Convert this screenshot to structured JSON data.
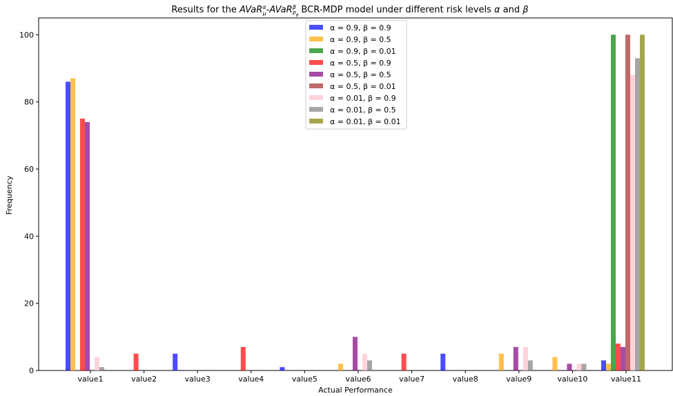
{
  "chart_data": {
    "type": "bar",
    "title": "Results for the AVaR_μ^α-AVaR_{P_θ}^β BCR-MDP model under different risk levels α and β",
    "title_parts": {
      "prefix": "Results for the ",
      "term1": "AVaR",
      "term1_sub": "μ",
      "term1_sup": "α",
      "dash": "-",
      "term2": "AVaR",
      "term2_sub": "P",
      "term2_subsub": "θ",
      "term2_sup": "β",
      "middle": " BCR-MDP model under different risk levels ",
      "alpha": "α",
      "and": " and ",
      "beta": "β"
    },
    "xlabel": "Actual Performance",
    "ylabel": "Frequency",
    "ylim": [
      0,
      105
    ],
    "yticks": [
      0,
      20,
      40,
      60,
      80,
      100
    ],
    "legend_position": "top-center",
    "categories": [
      "value1",
      "value2",
      "value3",
      "value4",
      "value5",
      "value6",
      "value7",
      "value8",
      "value9",
      "value10",
      "value11"
    ],
    "series": [
      {
        "name": "α = 0.9, β = 0.9",
        "color": "#0000ff",
        "values": [
          86,
          0,
          5,
          0,
          1,
          0,
          0,
          5,
          0,
          0,
          3
        ]
      },
      {
        "name": "α = 0.9, β = 0.5",
        "color": "#ffa500",
        "values": [
          87,
          0,
          0,
          0,
          0,
          2,
          0,
          0,
          5,
          4,
          2
        ]
      },
      {
        "name": "α = 0.9, β = 0.01",
        "color": "#008000",
        "values": [
          0,
          0,
          0,
          0,
          0,
          0,
          0,
          0,
          0,
          0,
          100
        ]
      },
      {
        "name": "α = 0.5, β = 0.9",
        "color": "#ff0000",
        "values": [
          75,
          5,
          0,
          7,
          0,
          0,
          5,
          0,
          0,
          0,
          8
        ]
      },
      {
        "name": "α = 0.5, β = 0.5",
        "color": "#800080",
        "values": [
          74,
          0,
          0,
          0,
          0,
          10,
          0,
          0,
          7,
          2,
          7
        ]
      },
      {
        "name": "α = 0.5, β = 0.01",
        "color": "#a52a2a",
        "values": [
          0,
          0,
          0,
          0,
          0,
          0,
          0,
          0,
          0,
          0,
          100
        ]
      },
      {
        "name": "α = 0.01, β = 0.9",
        "color": "#ffc0cb",
        "values": [
          4,
          0,
          0,
          0,
          0,
          5,
          0,
          0,
          7,
          2,
          88
        ]
      },
      {
        "name": "α = 0.01, β = 0.5",
        "color": "#808080",
        "values": [
          1,
          0,
          0,
          0,
          0,
          3,
          0,
          0,
          3,
          2,
          93
        ]
      },
      {
        "name": "α = 0.01, β = 0.01",
        "color": "#808000",
        "values": [
          0,
          0,
          0,
          0,
          0,
          0,
          0,
          0,
          0,
          0,
          100
        ]
      }
    ]
  }
}
